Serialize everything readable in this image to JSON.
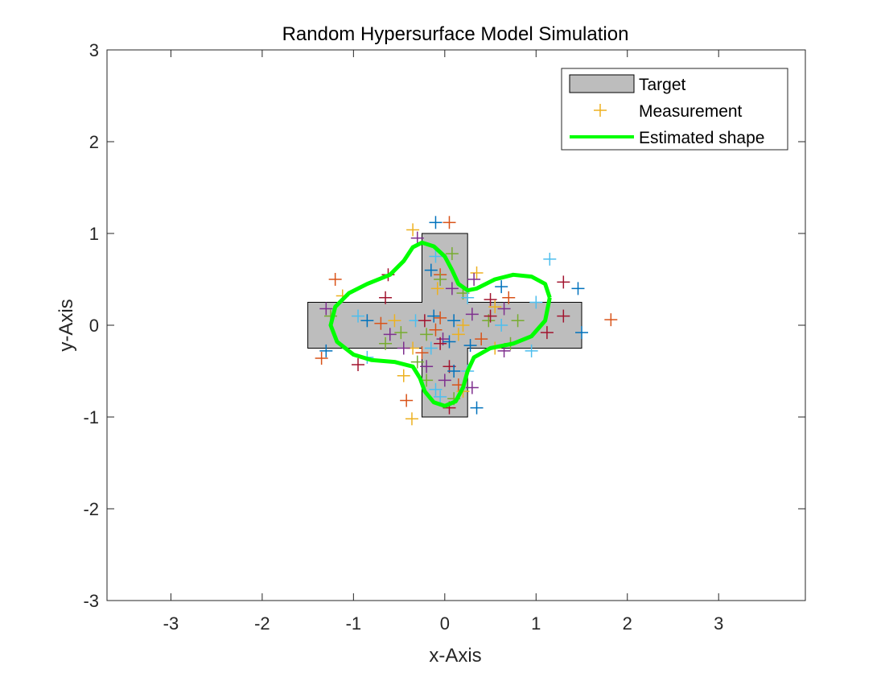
{
  "chart_data": {
    "type": "scatter",
    "title": "Random Hypersurface Model Simulation",
    "xlabel": "x-Axis",
    "ylabel": "y-Axis",
    "xlim": [
      -3.7,
      3.95
    ],
    "ylim": [
      -3,
      3
    ],
    "xticks": [
      -3,
      -2,
      -1,
      0,
      1,
      2,
      3
    ],
    "yticks": [
      -3,
      -2,
      -1,
      0,
      1,
      2,
      3
    ],
    "xtick_labels": [
      "-3",
      "-2",
      "-1",
      "0",
      "1",
      "2",
      "3"
    ],
    "ytick_labels": [
      "-3",
      "-2",
      "-1",
      "0",
      "1",
      "2",
      "3"
    ],
    "grid": false,
    "legend_position": "top-right",
    "colors": {
      "target_fill": "#bdbdbd",
      "target_edge": "#000000",
      "estimate": "#00ff00",
      "measurement_palette": [
        "#0072bd",
        "#d95319",
        "#edb120",
        "#7e2f8e",
        "#77ac30",
        "#4dbeee",
        "#a2142f"
      ]
    },
    "series": [
      {
        "name": "Target",
        "kind": "polygon",
        "points": [
          [
            -0.25,
            1
          ],
          [
            0.25,
            1
          ],
          [
            0.25,
            0.25
          ],
          [
            1.5,
            0.25
          ],
          [
            1.5,
            -0.25
          ],
          [
            0.25,
            -0.25
          ],
          [
            0.25,
            -1
          ],
          [
            -0.25,
            -1
          ],
          [
            -0.25,
            -0.25
          ],
          [
            -1.5,
            -0.25
          ],
          [
            -1.5,
            0.25
          ],
          [
            -0.25,
            0.25
          ]
        ]
      },
      {
        "name": "Measurement",
        "kind": "markers",
        "marker": "+",
        "points": [
          [
            -0.1,
            1.12
          ],
          [
            0.05,
            1.12
          ],
          [
            -0.35,
            1.04
          ],
          [
            -0.3,
            0.95
          ],
          [
            0.08,
            0.78
          ],
          [
            -0.1,
            0.75
          ],
          [
            -0.62,
            0.55
          ],
          [
            -0.15,
            0.6
          ],
          [
            -0.05,
            0.55
          ],
          [
            0.35,
            0.57
          ],
          [
            0.32,
            0.5
          ],
          [
            -0.05,
            0.5
          ],
          [
            1.15,
            0.72
          ],
          [
            1.3,
            0.47
          ],
          [
            1.46,
            0.4
          ],
          [
            -1.2,
            0.5
          ],
          [
            -1.12,
            0.32
          ],
          [
            -1.3,
            0.18
          ],
          [
            -1.25,
            0.1
          ],
          [
            -0.95,
            0.1
          ],
          [
            -0.65,
            0.3
          ],
          [
            -0.85,
            0.05
          ],
          [
            -0.7,
            0.02
          ],
          [
            -0.55,
            0.05
          ],
          [
            -0.6,
            -0.1
          ],
          [
            -0.48,
            -0.08
          ],
          [
            -0.32,
            0.05
          ],
          [
            -0.22,
            0.05
          ],
          [
            -0.12,
            0.1
          ],
          [
            -0.05,
            0.08
          ],
          [
            -0.08,
            0.4
          ],
          [
            0.08,
            0.4
          ],
          [
            0.2,
            0.35
          ],
          [
            0.25,
            0.3
          ],
          [
            0.5,
            0.28
          ],
          [
            0.62,
            0.42
          ],
          [
            0.7,
            0.3
          ],
          [
            0.55,
            0.2
          ],
          [
            0.65,
            0.18
          ],
          [
            0.8,
            0.05
          ],
          [
            1.0,
            0.25
          ],
          [
            1.3,
            0.1
          ],
          [
            1.5,
            -0.08
          ],
          [
            1.82,
            0.06
          ],
          [
            0.2,
            0.0
          ],
          [
            0.3,
            0.12
          ],
          [
            0.48,
            0.05
          ],
          [
            0.62,
            0.0
          ],
          [
            0.5,
            0.1
          ],
          [
            0.28,
            -0.22
          ],
          [
            0.4,
            -0.15
          ],
          [
            0.55,
            -0.25
          ],
          [
            0.65,
            -0.28
          ],
          [
            0.72,
            -0.2
          ],
          [
            0.95,
            -0.28
          ],
          [
            1.12,
            -0.08
          ],
          [
            0.1,
            0.05
          ],
          [
            -0.1,
            -0.05
          ],
          [
            0.15,
            -0.1
          ],
          [
            -0.02,
            -0.15
          ],
          [
            -0.2,
            -0.1
          ],
          [
            -0.15,
            -0.25
          ],
          [
            -0.05,
            -0.2
          ],
          [
            0.05,
            -0.18
          ],
          [
            -0.25,
            -0.3
          ],
          [
            -0.35,
            -0.25
          ],
          [
            -0.45,
            -0.25
          ],
          [
            -0.65,
            -0.2
          ],
          [
            -0.85,
            -0.35
          ],
          [
            -0.95,
            -0.43
          ],
          [
            -1.3,
            -0.28
          ],
          [
            -1.35,
            -0.36
          ],
          [
            -0.45,
            -0.55
          ],
          [
            -0.2,
            -0.45
          ],
          [
            -0.2,
            -0.6
          ],
          [
            -0.1,
            -0.7
          ],
          [
            0.05,
            -0.45
          ],
          [
            0.1,
            -0.5
          ],
          [
            0.15,
            -0.65
          ],
          [
            0.2,
            -0.72
          ],
          [
            0.3,
            -0.68
          ],
          [
            0.1,
            -0.8
          ],
          [
            -0.05,
            -0.78
          ],
          [
            0.05,
            -0.9
          ],
          [
            0.35,
            -0.9
          ],
          [
            -0.42,
            -0.82
          ],
          [
            -0.36,
            -1.02
          ],
          [
            0.0,
            -0.6
          ],
          [
            -0.3,
            -0.4
          ],
          [
            0.25,
            -0.5
          ]
        ]
      },
      {
        "name": "Estimated shape",
        "kind": "line",
        "points": [
          [
            1.15,
            0.3
          ],
          [
            1.1,
            0.45
          ],
          [
            0.95,
            0.53
          ],
          [
            0.75,
            0.55
          ],
          [
            0.55,
            0.5
          ],
          [
            0.35,
            0.4
          ],
          [
            0.25,
            0.38
          ],
          [
            0.15,
            0.45
          ],
          [
            0.08,
            0.6
          ],
          [
            0.0,
            0.75
          ],
          [
            -0.12,
            0.86
          ],
          [
            -0.25,
            0.9
          ],
          [
            -0.35,
            0.85
          ],
          [
            -0.45,
            0.7
          ],
          [
            -0.6,
            0.55
          ],
          [
            -0.85,
            0.45
          ],
          [
            -1.05,
            0.35
          ],
          [
            -1.2,
            0.2
          ],
          [
            -1.25,
            0.0
          ],
          [
            -1.18,
            -0.18
          ],
          [
            -1.0,
            -0.32
          ],
          [
            -0.8,
            -0.38
          ],
          [
            -0.55,
            -0.4
          ],
          [
            -0.35,
            -0.45
          ],
          [
            -0.27,
            -0.58
          ],
          [
            -0.22,
            -0.72
          ],
          [
            -0.12,
            -0.84
          ],
          [
            0.0,
            -0.88
          ],
          [
            0.12,
            -0.83
          ],
          [
            0.2,
            -0.68
          ],
          [
            0.25,
            -0.5
          ],
          [
            0.32,
            -0.35
          ],
          [
            0.5,
            -0.25
          ],
          [
            0.75,
            -0.2
          ],
          [
            0.95,
            -0.12
          ],
          [
            1.1,
            0.05
          ],
          [
            1.15,
            0.3
          ]
        ]
      }
    ]
  }
}
